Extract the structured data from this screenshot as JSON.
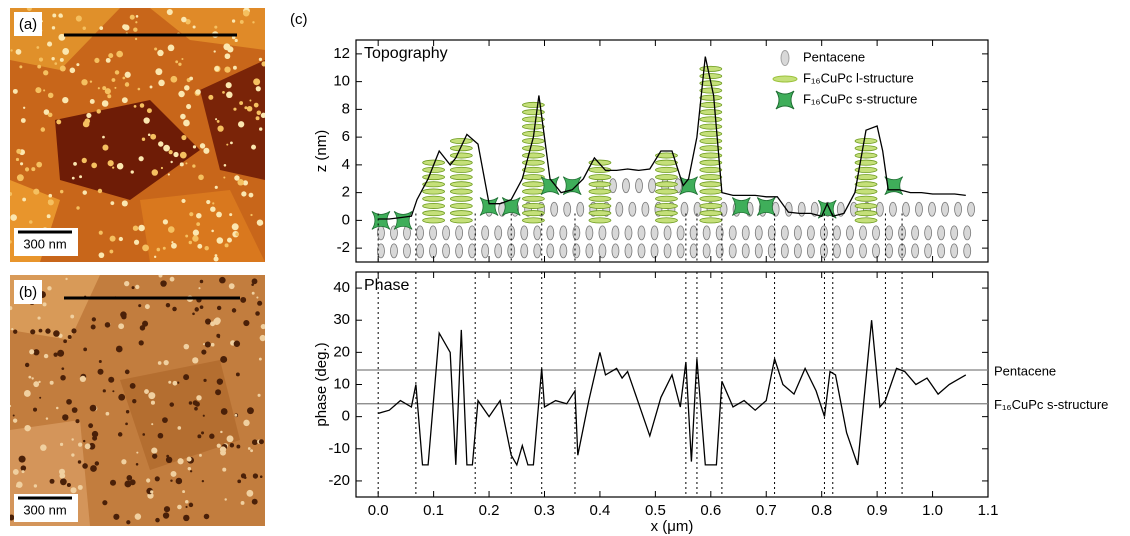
{
  "panels": {
    "a": {
      "label": "(a)",
      "scale_bar": "300 nm"
    },
    "b": {
      "label": "(b)",
      "scale_bar": "300 nm"
    },
    "c": {
      "label": "(c)"
    }
  },
  "chart_data": [
    {
      "type": "line",
      "title": "Topography",
      "ylabel": "z (nm)",
      "color": "#000000",
      "xlim": [
        -0.04,
        1.1
      ],
      "ylim": [
        -3,
        13
      ],
      "yticks": [
        -2,
        0,
        2,
        4,
        6,
        8,
        10,
        12
      ],
      "legend": [
        {
          "name": "Pentacene",
          "color": "#a0a0a0"
        },
        {
          "name": "F₁₆CuPc l-structure",
          "color": "#9cc23c"
        },
        {
          "name": "F₁₆CuPc s-structure",
          "color": "#3fae5a"
        }
      ],
      "x": [
        0,
        0.02,
        0.04,
        0.06,
        0.07,
        0.09,
        0.11,
        0.13,
        0.14,
        0.16,
        0.18,
        0.2,
        0.22,
        0.24,
        0.26,
        0.28,
        0.29,
        0.31,
        0.33,
        0.35,
        0.37,
        0.39,
        0.41,
        0.43,
        0.45,
        0.47,
        0.49,
        0.51,
        0.53,
        0.55,
        0.56,
        0.575,
        0.59,
        0.605,
        0.62,
        0.64,
        0.66,
        0.68,
        0.7,
        0.72,
        0.74,
        0.76,
        0.78,
        0.8,
        0.81,
        0.82,
        0.84,
        0.86,
        0.88,
        0.9,
        0.91,
        0.92,
        0.94,
        0.96,
        0.98,
        1.0,
        1.02,
        1.04,
        1.06
      ],
      "values": [
        0.1,
        0.1,
        0.2,
        0.3,
        1.5,
        3,
        5,
        4,
        4.5,
        6.2,
        5.5,
        1.2,
        1.2,
        1.5,
        3,
        6,
        9,
        3,
        2,
        2.2,
        3,
        4.5,
        3.6,
        3.6,
        3.7,
        3.6,
        3.7,
        5,
        5,
        2.5,
        3,
        6,
        11.8,
        9,
        2,
        1.8,
        1.8,
        1.8,
        1.7,
        1.7,
        0.6,
        0.5,
        0.5,
        0.3,
        1.2,
        0.3,
        0.5,
        2,
        6.5,
        6.8,
        5,
        2.2,
        2.2,
        2,
        2,
        1.9,
        1.9,
        1.9,
        1.8
      ]
    },
    {
      "type": "line",
      "title": "Phase",
      "ylabel": "phase (deg.)",
      "xlabel": "x (μm)",
      "color": "#000000",
      "xlim": [
        -0.04,
        1.1
      ],
      "xticks": [
        {
          "value": 0,
          "label": "0.0"
        },
        0.1,
        0.2,
        0.3,
        0.4,
        0.5,
        0.6,
        0.7,
        0.8,
        0.9,
        {
          "value": 1,
          "label": "1.0"
        },
        1.1
      ],
      "ylim": [
        -25,
        45
      ],
      "yticks": [
        -20,
        -10,
        0,
        10,
        20,
        30,
        40
      ],
      "hlines": [
        {
          "value": 14.5,
          "label": "Pentacene"
        },
        {
          "value": 4,
          "label": "F₁₆CuPc s-structure"
        }
      ],
      "hline_color": "#808080",
      "vlines": [
        0,
        0.068,
        0.175,
        0.24,
        0.295,
        0.355,
        0.555,
        0.575,
        0.62,
        0.715,
        0.805,
        0.82,
        0.915,
        0.945
      ],
      "x": [
        0,
        0.02,
        0.04,
        0.06,
        0.068,
        0.08,
        0.09,
        0.11,
        0.13,
        0.14,
        0.15,
        0.16,
        0.17,
        0.18,
        0.2,
        0.22,
        0.24,
        0.25,
        0.26,
        0.27,
        0.28,
        0.295,
        0.3,
        0.32,
        0.34,
        0.355,
        0.36,
        0.38,
        0.4,
        0.41,
        0.43,
        0.44,
        0.45,
        0.46,
        0.49,
        0.51,
        0.53,
        0.545,
        0.555,
        0.565,
        0.575,
        0.59,
        0.61,
        0.62,
        0.64,
        0.66,
        0.68,
        0.7,
        0.715,
        0.73,
        0.75,
        0.77,
        0.79,
        0.805,
        0.815,
        0.825,
        0.845,
        0.865,
        0.89,
        0.905,
        0.915,
        0.935,
        0.95,
        0.97,
        0.99,
        1.01,
        1.03,
        1.06
      ],
      "values": [
        1,
        2,
        5,
        3,
        10,
        -15,
        -15,
        26,
        20,
        -15,
        27,
        -15,
        -15,
        5,
        0,
        5,
        -12,
        -15,
        -9,
        -15,
        -15,
        15,
        3,
        5,
        4,
        8,
        -12,
        5,
        20,
        13,
        15,
        12,
        14,
        9,
        -6,
        6,
        13,
        3,
        17,
        -14,
        18,
        -15,
        -15,
        11,
        3,
        5,
        2,
        5,
        18,
        10,
        7,
        15,
        8,
        0,
        14,
        13,
        -5,
        -15,
        30,
        3,
        5,
        15,
        14,
        10,
        12,
        7,
        10,
        13
      ]
    }
  ]
}
